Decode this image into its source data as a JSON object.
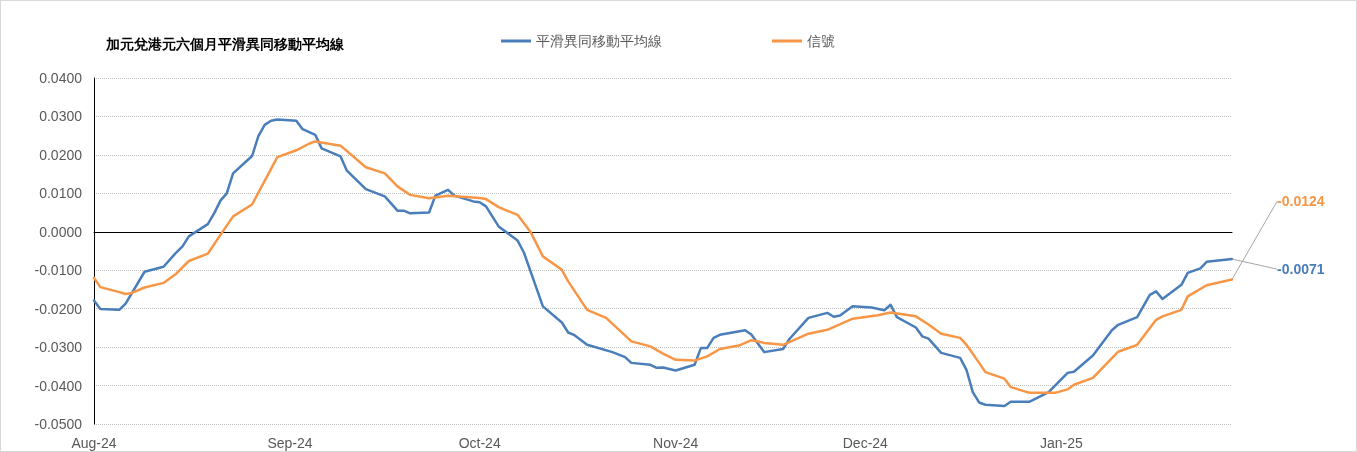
{
  "chart_data": {
    "type": "line",
    "title": "加元兌港元六個月平滑異同移動平均線",
    "legend": "top",
    "grid": "y",
    "marker": "none",
    "line_style": "solid",
    "xlim": [
      "2024-08-01",
      "2025-01-28"
    ],
    "xticks": [
      {
        "value": "2024-08-01",
        "label": "Aug-24"
      },
      {
        "value": "2024-09-01",
        "label": "Sep-24"
      },
      {
        "value": "2024-10-01",
        "label": "Oct-24"
      },
      {
        "value": "2024-11-01",
        "label": "Nov-24"
      },
      {
        "value": "2024-12-01",
        "label": "Dec-24"
      },
      {
        "value": "2025-01-01",
        "label": "Jan-25"
      }
    ],
    "ylim": [
      -0.05,
      0.04
    ],
    "yticks": [
      {
        "value": -0.05,
        "label": "-0.0500"
      },
      {
        "value": -0.04,
        "label": "-0.0400"
      },
      {
        "value": -0.03,
        "label": "-0.0300"
      },
      {
        "value": -0.02,
        "label": "-0.0200"
      },
      {
        "value": -0.01,
        "label": "-0.0100"
      },
      {
        "value": 0,
        "label": "0.0000"
      },
      {
        "value": 0.01,
        "label": "0.0100"
      },
      {
        "value": 0.02,
        "label": "0.0200"
      },
      {
        "value": 0.03,
        "label": "0.0300"
      },
      {
        "value": 0.04,
        "label": "0.0400"
      }
    ],
    "series": [
      {
        "name": "平滑異同移動平均線",
        "color": "#4a7ebb",
        "x": [
          "2024-08-01",
          "2024-08-02",
          "2024-08-05",
          "2024-08-06",
          "2024-08-09",
          "2024-08-12",
          "2024-08-14",
          "2024-08-15",
          "2024-08-16",
          "2024-08-19",
          "2024-08-20",
          "2024-08-21",
          "2024-08-22",
          "2024-08-23",
          "2024-08-26",
          "2024-08-27",
          "2024-08-28",
          "2024-08-29",
          "2024-08-30",
          "2024-09-02",
          "2024-09-03",
          "2024-09-05",
          "2024-09-06",
          "2024-09-09",
          "2024-09-10",
          "2024-09-13",
          "2024-09-16",
          "2024-09-18",
          "2024-09-19",
          "2024-09-20",
          "2024-09-23",
          "2024-09-24",
          "2024-09-26",
          "2024-09-27",
          "2024-09-30",
          "2024-10-01",
          "2024-10-02",
          "2024-10-04",
          "2024-10-07",
          "2024-10-08",
          "2024-10-11",
          "2024-10-14",
          "2024-10-15",
          "2024-10-16",
          "2024-10-18",
          "2024-10-22",
          "2024-10-24",
          "2024-10-25",
          "2024-10-28",
          "2024-10-29",
          "2024-10-30",
          "2024-11-01",
          "2024-11-04",
          "2024-11-05",
          "2024-11-06",
          "2024-11-07",
          "2024-11-08",
          "2024-11-12",
          "2024-11-13",
          "2024-11-15",
          "2024-11-18",
          "2024-11-19",
          "2024-11-22",
          "2024-11-25",
          "2024-11-26",
          "2024-11-27",
          "2024-11-29",
          "2024-12-02",
          "2024-12-04",
          "2024-12-05",
          "2024-12-06",
          "2024-12-09",
          "2024-12-10",
          "2024-12-11",
          "2024-12-13",
          "2024-12-16",
          "2024-12-17",
          "2024-12-18",
          "2024-12-19",
          "2024-12-20",
          "2024-12-23",
          "2024-12-24",
          "2024-12-27",
          "2024-12-30",
          "2025-01-02",
          "2025-01-03",
          "2025-01-06",
          "2025-01-09",
          "2025-01-10",
          "2025-01-13",
          "2025-01-15",
          "2025-01-16",
          "2025-01-17",
          "2025-01-20",
          "2025-01-21",
          "2025-01-23",
          "2025-01-24",
          "2025-01-28"
        ],
        "values": [
          -0.0179,
          -0.0201,
          -0.0203,
          -0.0187,
          -0.0104,
          -0.0091,
          -0.0054,
          -0.0038,
          -0.0012,
          0.002,
          0.0048,
          0.0081,
          0.01,
          0.0152,
          0.0197,
          0.0249,
          0.0278,
          0.0289,
          0.0292,
          0.0289,
          0.0267,
          0.0252,
          0.0217,
          0.0196,
          0.0159,
          0.0111,
          0.0092,
          0.0055,
          0.0055,
          0.0048,
          0.005,
          0.0094,
          0.0109,
          0.0094,
          0.0079,
          0.0077,
          0.0066,
          0.0014,
          -0.0023,
          -0.0054,
          -0.0194,
          -0.0236,
          -0.0262,
          -0.0269,
          -0.0294,
          -0.0313,
          -0.0326,
          -0.0341,
          -0.0346,
          -0.0354,
          -0.0353,
          -0.0361,
          -0.0346,
          -0.0302,
          -0.0302,
          -0.0276,
          -0.0268,
          -0.0256,
          -0.0268,
          -0.0313,
          -0.0305,
          -0.0279,
          -0.0224,
          -0.0211,
          -0.0221,
          -0.0218,
          -0.0194,
          -0.0197,
          -0.0204,
          -0.019,
          -0.0222,
          -0.0249,
          -0.0272,
          -0.0278,
          -0.0315,
          -0.0328,
          -0.0359,
          -0.0417,
          -0.0444,
          -0.045,
          -0.0453,
          -0.0442,
          -0.0442,
          -0.0417,
          -0.0367,
          -0.0364,
          -0.0322,
          -0.0256,
          -0.0242,
          -0.0222,
          -0.0164,
          -0.0155,
          -0.0175,
          -0.0138,
          -0.0107,
          -0.0095,
          -0.0078,
          -0.0071
        ],
        "value_labels": [
          null,
          null,
          null,
          null,
          null,
          null,
          null,
          null,
          null,
          null,
          null,
          null,
          null,
          null,
          null,
          null,
          null,
          null,
          null,
          null,
          null,
          null,
          null,
          null,
          null,
          null,
          null,
          null,
          null,
          null,
          null,
          null,
          null,
          null,
          null,
          null,
          null,
          null,
          null,
          null,
          null,
          null,
          null,
          null,
          null,
          null,
          null,
          null,
          null,
          null,
          null,
          null,
          null,
          null,
          null,
          null,
          null,
          null,
          null,
          null,
          null,
          null,
          null,
          null,
          null,
          null,
          null,
          null,
          null,
          null,
          null,
          null,
          null,
          null,
          null,
          null,
          null,
          null,
          null,
          null,
          null,
          null,
          null,
          null,
          null,
          null,
          null,
          null,
          null,
          null,
          null,
          null,
          null,
          null,
          null,
          null,
          null,
          "-0.0071"
        ]
      },
      {
        "name": "信號",
        "color": "#f79646",
        "x": [
          "2024-08-01",
          "2024-08-02",
          "2024-08-05",
          "2024-08-06",
          "2024-08-07",
          "2024-08-09",
          "2024-08-12",
          "2024-08-14",
          "2024-08-16",
          "2024-08-19",
          "2024-08-21",
          "2024-08-23",
          "2024-08-26",
          "2024-08-30",
          "2024-09-02",
          "2024-09-04",
          "2024-09-05",
          "2024-09-09",
          "2024-09-13",
          "2024-09-16",
          "2024-09-18",
          "2024-09-20",
          "2024-09-23",
          "2024-09-26",
          "2024-10-01",
          "2024-10-02",
          "2024-10-04",
          "2024-10-07",
          "2024-10-09",
          "2024-10-11",
          "2024-10-14",
          "2024-10-15",
          "2024-10-18",
          "2024-10-21",
          "2024-10-25",
          "2024-10-28",
          "2024-10-30",
          "2024-11-01",
          "2024-11-04",
          "2024-11-06",
          "2024-11-08",
          "2024-11-11",
          "2024-11-13",
          "2024-11-15",
          "2024-11-18",
          "2024-11-22",
          "2024-11-25",
          "2024-11-29",
          "2024-12-03",
          "2024-12-05",
          "2024-12-09",
          "2024-12-11",
          "2024-12-13",
          "2024-12-16",
          "2024-12-17",
          "2024-12-19",
          "2024-12-20",
          "2024-12-23",
          "2024-12-24",
          "2024-12-27",
          "2024-12-31",
          "2025-01-02",
          "2025-01-03",
          "2025-01-06",
          "2025-01-10",
          "2025-01-13",
          "2025-01-16",
          "2025-01-17",
          "2025-01-20",
          "2025-01-21",
          "2025-01-24",
          "2025-01-28"
        ],
        "values": [
          -0.012,
          -0.0144,
          -0.0157,
          -0.0162,
          -0.0159,
          -0.0145,
          -0.0133,
          -0.0109,
          -0.0076,
          -0.0057,
          -0.0008,
          0.004,
          0.0071,
          0.0194,
          0.0212,
          0.0229,
          0.0235,
          0.0224,
          0.0168,
          0.0152,
          0.0118,
          0.0096,
          0.0087,
          0.0094,
          0.0088,
          0.0085,
          0.0064,
          0.0044,
          0.0001,
          -0.0064,
          -0.0099,
          -0.0129,
          -0.0203,
          -0.0224,
          -0.0285,
          -0.0298,
          -0.0317,
          -0.0333,
          -0.0335,
          -0.0324,
          -0.0305,
          -0.0296,
          -0.0282,
          -0.0289,
          -0.0294,
          -0.0265,
          -0.0255,
          -0.0226,
          -0.0217,
          -0.021,
          -0.022,
          -0.0241,
          -0.0265,
          -0.0276,
          -0.0294,
          -0.0341,
          -0.0365,
          -0.0382,
          -0.0404,
          -0.0419,
          -0.0419,
          -0.041,
          -0.0398,
          -0.038,
          -0.0312,
          -0.0294,
          -0.0229,
          -0.022,
          -0.0203,
          -0.0168,
          -0.0139,
          -0.0124
        ],
        "value_labels": [
          null,
          null,
          null,
          null,
          null,
          null,
          null,
          null,
          null,
          null,
          null,
          null,
          null,
          null,
          null,
          null,
          null,
          null,
          null,
          null,
          null,
          null,
          null,
          null,
          null,
          null,
          null,
          null,
          null,
          null,
          null,
          null,
          null,
          null,
          null,
          null,
          null,
          null,
          null,
          null,
          null,
          null,
          null,
          null,
          null,
          null,
          null,
          null,
          null,
          null,
          null,
          null,
          null,
          null,
          null,
          null,
          null,
          null,
          null,
          null,
          null,
          null,
          null,
          null,
          null,
          null,
          null,
          null,
          null,
          null,
          null,
          "-0.0124"
        ]
      }
    ]
  }
}
